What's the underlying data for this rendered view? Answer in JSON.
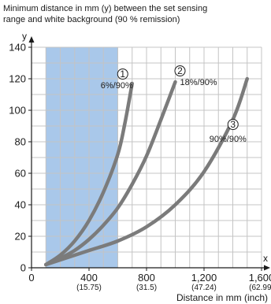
{
  "chart_data": {
    "type": "line",
    "title_lines": [
      "Minimum distance in mm (y) between the set sensing",
      "range and white background (90 % remission)"
    ],
    "xlabel": "Distance in mm (inch)",
    "x_axis_letter": "x",
    "y_axis_letter": "y",
    "xlim": [
      0,
      1600
    ],
    "ylim": [
      0,
      140
    ],
    "x_ticks": [
      {
        "value": 0,
        "label": "0",
        "sublabel": ""
      },
      {
        "value": 400,
        "label": "400",
        "sublabel": "(15.75)"
      },
      {
        "value": 800,
        "label": "800",
        "sublabel": "(31.5)"
      },
      {
        "value": 1200,
        "label": "1,200",
        "sublabel": "(47.24)"
      },
      {
        "value": 1600,
        "label": "1,600",
        "sublabel": "(62.99)"
      }
    ],
    "y_ticks": [
      {
        "value": 0,
        "label": "0"
      },
      {
        "value": 20,
        "label": "20"
      },
      {
        "value": 40,
        "label": "40"
      },
      {
        "value": 60,
        "label": "60"
      },
      {
        "value": 80,
        "label": "80"
      },
      {
        "value": 100,
        "label": "100"
      },
      {
        "value": 120,
        "label": "120"
      },
      {
        "value": 140,
        "label": "140"
      }
    ],
    "grid": true,
    "grid_x_step": 100,
    "grid_y_step": 10,
    "highlight_x_range": [
      100,
      600
    ],
    "colors": {
      "highlight": "#a9c8ea",
      "grid": "#c4c4c4",
      "curve": "#7b7b7b",
      "axis": "#1a1a1a"
    },
    "series": [
      {
        "number": "1",
        "label": "6%/90%",
        "x": [
          100,
          200,
          300,
          400,
          500,
          600,
          650,
          700
        ],
        "y": [
          2,
          8,
          17,
          30,
          48,
          72,
          92,
          117
        ]
      },
      {
        "number": "2",
        "label": "18%/90%",
        "x": [
          100,
          200,
          300,
          400,
          500,
          600,
          700,
          800,
          900,
          1000
        ],
        "y": [
          2,
          6,
          11,
          18,
          27,
          38,
          53,
          71,
          94,
          118
        ]
      },
      {
        "number": "3",
        "label": "90%/90%",
        "x": [
          100,
          200,
          400,
          600,
          800,
          1000,
          1200,
          1400,
          1500
        ],
        "y": [
          2,
          5,
          11,
          17,
          26,
          40,
          61,
          94,
          120
        ]
      }
    ]
  }
}
